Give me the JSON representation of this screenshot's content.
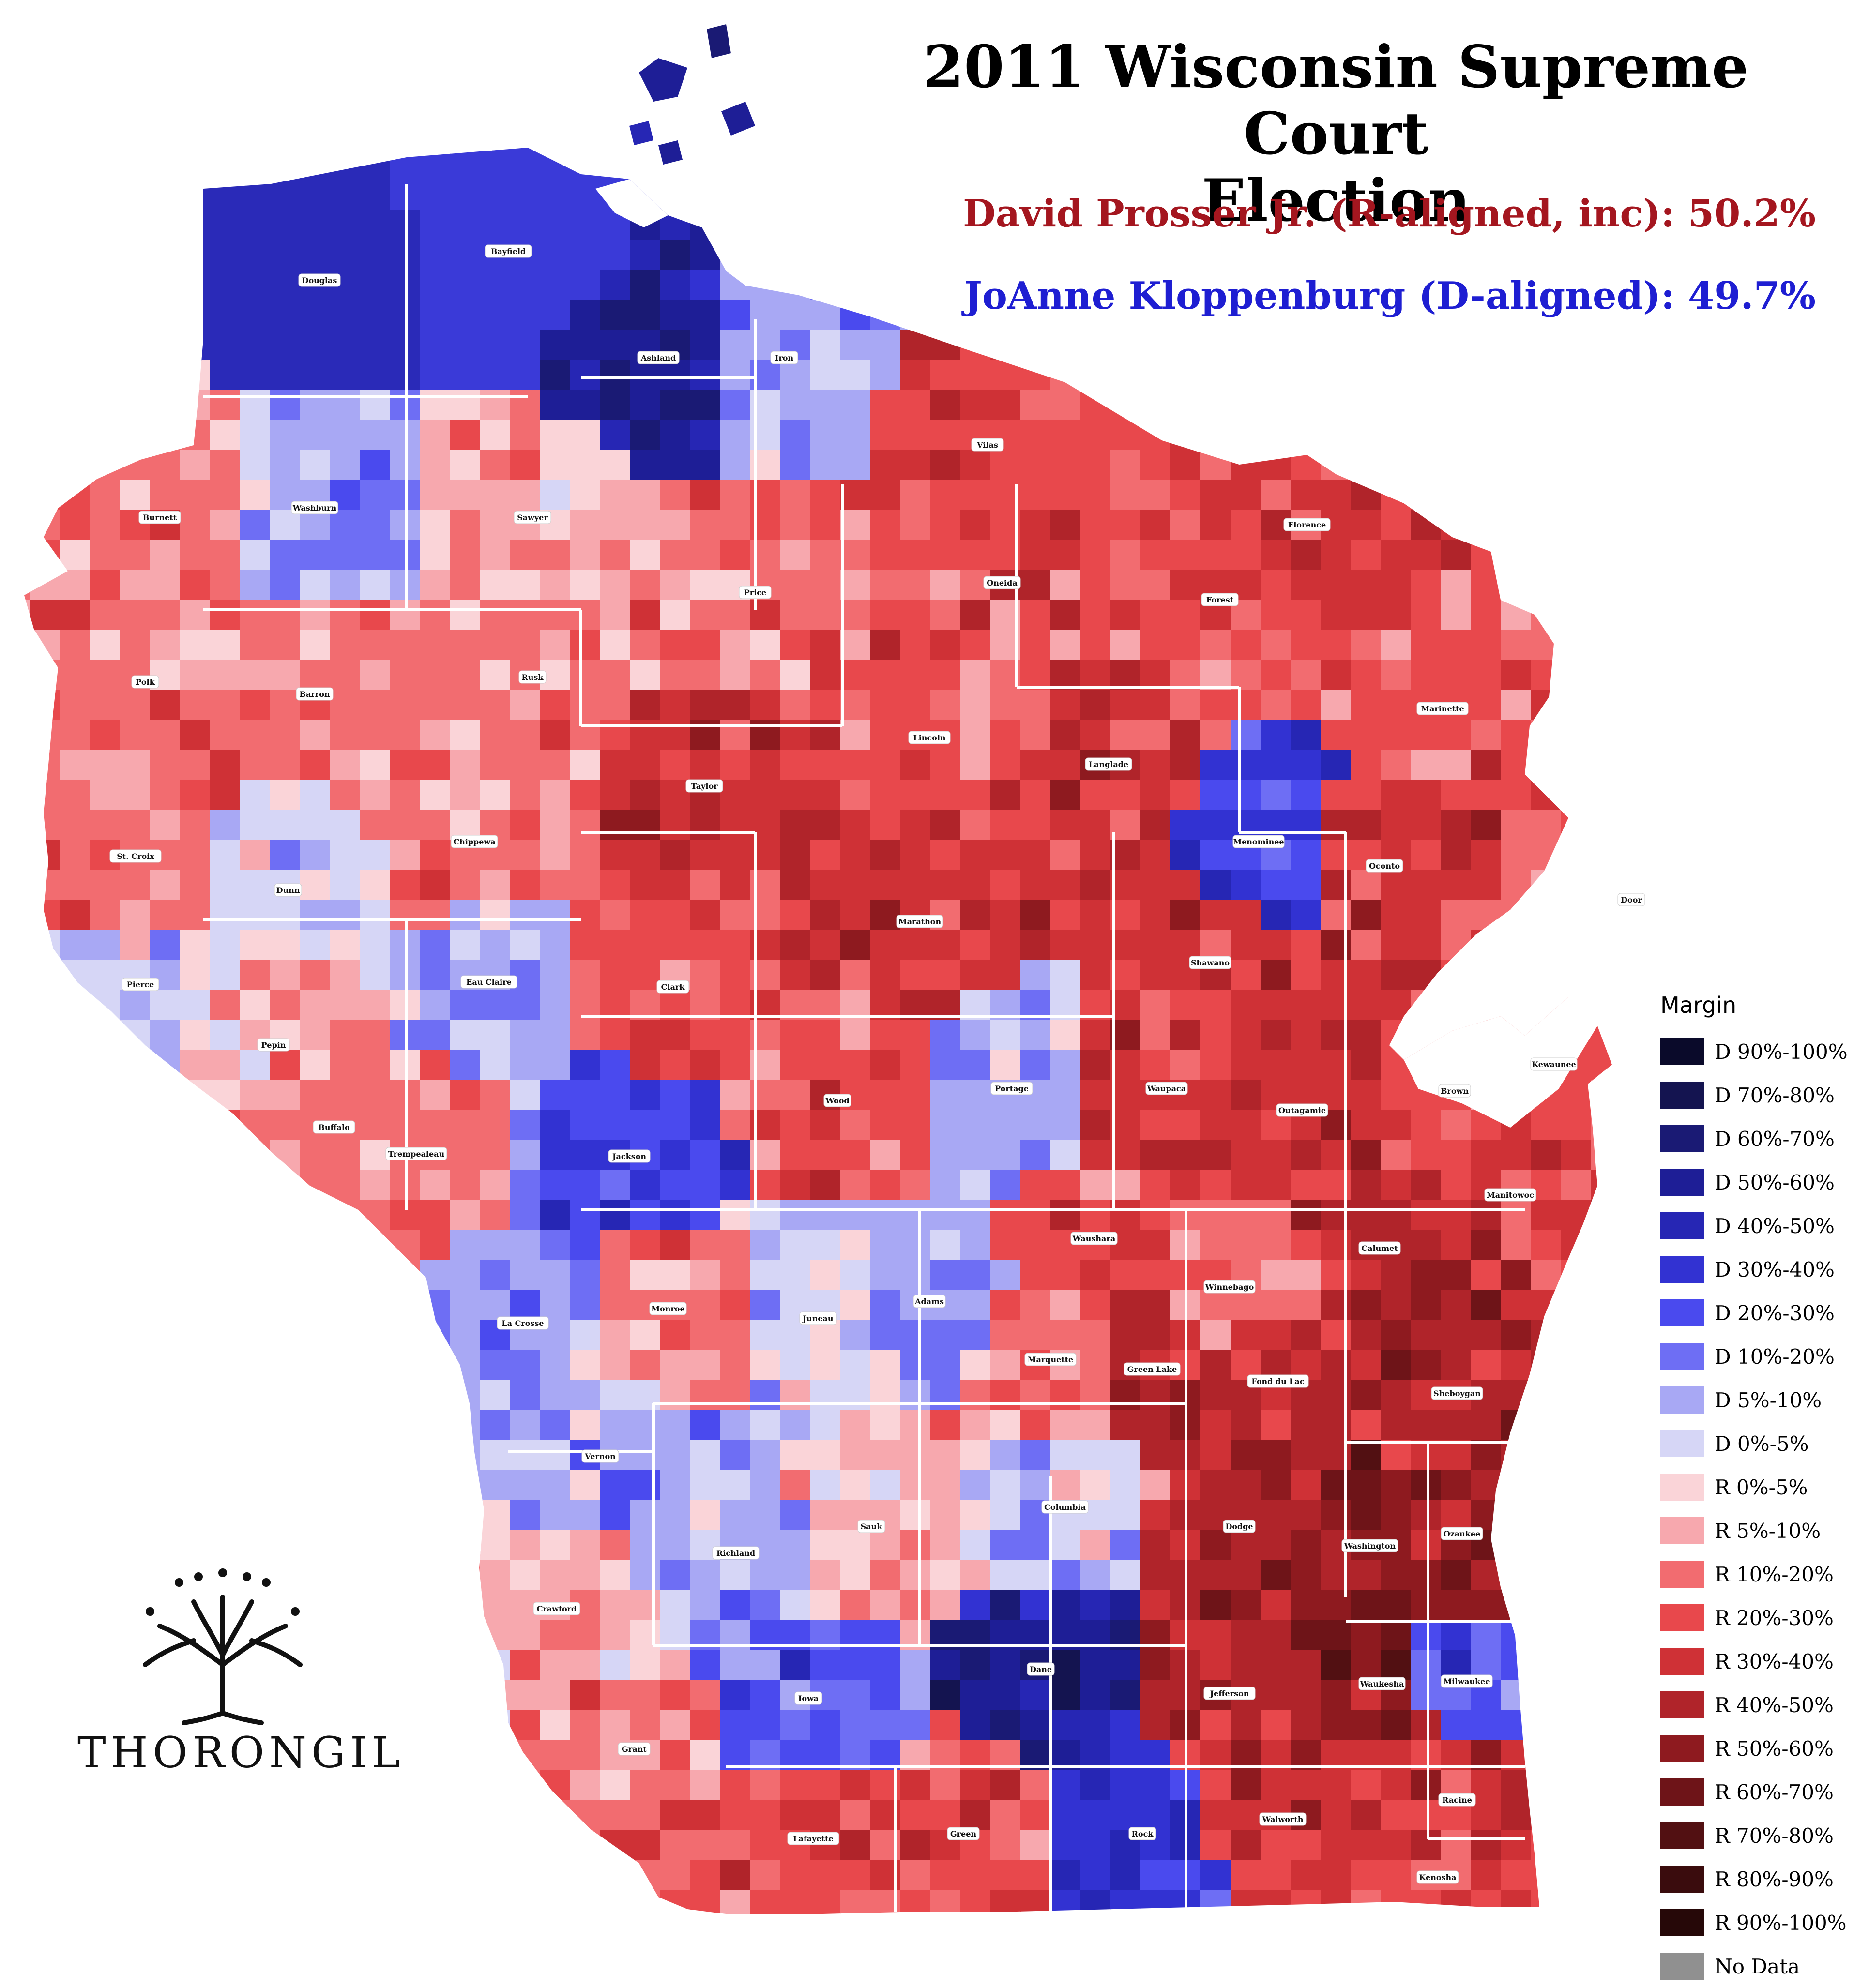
{
  "title": {
    "line1": "2011 Wisconsin Supreme Court",
    "line2": "Election"
  },
  "candidates": {
    "r": {
      "label": "David Prosser Jr. (R-aligned, inc): 50.2%",
      "color": "#a4161f"
    },
    "d": {
      "label": "JoAnne Kloppenburg (D-aligned): 49.7%",
      "color": "#1e1ed2"
    }
  },
  "legend": {
    "title": "Margin",
    "items": [
      {
        "label": "D 90%-100%",
        "color": "#0a0a2a"
      },
      {
        "label": "D 70%-80%",
        "color": "#141450"
      },
      {
        "label": "D 60%-70%",
        "color": "#1a1a74"
      },
      {
        "label": "D 50%-60%",
        "color": "#1e1e96"
      },
      {
        "label": "D 40%-50%",
        "color": "#2626b4"
      },
      {
        "label": "D 30%-40%",
        "color": "#3232d2"
      },
      {
        "label": "D 20%-30%",
        "color": "#4a4aee"
      },
      {
        "label": "D 10%-20%",
        "color": "#6e6ef4"
      },
      {
        "label": "D 5%-10%",
        "color": "#a8a8f4"
      },
      {
        "label": "D 0%-5%",
        "color": "#d6d6f6"
      },
      {
        "label": "R 0%-5%",
        "color": "#fad4d8"
      },
      {
        "label": "R 5%-10%",
        "color": "#f7a8ae"
      },
      {
        "label": "R 10%-20%",
        "color": "#f26c70"
      },
      {
        "label": "R 20%-30%",
        "color": "#e8484c"
      },
      {
        "label": "R 30%-40%",
        "color": "#cf3136"
      },
      {
        "label": "R 40%-50%",
        "color": "#b0242a"
      },
      {
        "label": "R 50%-60%",
        "color": "#8e1a1f"
      },
      {
        "label": "R 60%-70%",
        "color": "#6e1418"
      },
      {
        "label": "R 70%-80%",
        "color": "#521012"
      },
      {
        "label": "R 80%-90%",
        "color": "#3a0c0d"
      },
      {
        "label": "R 90%-100%",
        "color": "#260808"
      },
      {
        "label": "No Data",
        "color": "#909090"
      }
    ]
  },
  "counties": [
    {
      "name": "Douglas",
      "fill": "#2a2ab8"
    },
    {
      "name": "Bayfield",
      "fill": "#3a3ad8"
    },
    {
      "name": "Ashland",
      "fill": "#1e1e96"
    },
    {
      "name": "Iron",
      "fill": "#a8a8f4"
    },
    {
      "name": "Vilas",
      "fill": "#e8484c"
    },
    {
      "name": "Florence",
      "fill": "#cf3136"
    },
    {
      "name": "Burnett",
      "fill": "#f26c70"
    },
    {
      "name": "Washburn",
      "fill": "#a8a8f4"
    },
    {
      "name": "Sawyer",
      "fill": "#f7a8ae"
    },
    {
      "name": "Price",
      "fill": "#f26c70"
    },
    {
      "name": "Oneida",
      "fill": "#e8484c"
    },
    {
      "name": "Forest",
      "fill": "#e8484c"
    },
    {
      "name": "Marinette",
      "fill": "#e8484c"
    },
    {
      "name": "Polk",
      "fill": "#f26c70"
    },
    {
      "name": "Barron",
      "fill": "#f26c70"
    },
    {
      "name": "Rusk",
      "fill": "#f26c70"
    },
    {
      "name": "Taylor",
      "fill": "#cf3136"
    },
    {
      "name": "Lincoln",
      "fill": "#e8484c"
    },
    {
      "name": "Langlade",
      "fill": "#cf3136"
    },
    {
      "name": "Menominee",
      "fill": "#3232d2"
    },
    {
      "name": "Oconto",
      "fill": "#cf3136"
    },
    {
      "name": "Door",
      "fill": "#f26c70"
    },
    {
      "name": "St. Croix",
      "fill": "#f26c70"
    },
    {
      "name": "Dunn",
      "fill": "#d6d6f6"
    },
    {
      "name": "Chippewa",
      "fill": "#f26c70"
    },
    {
      "name": "Marathon",
      "fill": "#cf3136"
    },
    {
      "name": "Shawano",
      "fill": "#cf3136"
    },
    {
      "name": "Kewaunee",
      "fill": "#e8484c"
    },
    {
      "name": "Pierce",
      "fill": "#d6d6f6"
    },
    {
      "name": "Eau Claire",
      "fill": "#a8a8f4"
    },
    {
      "name": "Clark",
      "fill": "#e8484c"
    },
    {
      "name": "Pepin",
      "fill": "#f7a8ae"
    },
    {
      "name": "Buffalo",
      "fill": "#f26c70"
    },
    {
      "name": "Trempealeau",
      "fill": "#f26c70"
    },
    {
      "name": "Jackson",
      "fill": "#4a4aee"
    },
    {
      "name": "Wood",
      "fill": "#e8484c"
    },
    {
      "name": "Portage",
      "fill": "#a8a8f4"
    },
    {
      "name": "Waupaca",
      "fill": "#cf3136"
    },
    {
      "name": "Outagamie",
      "fill": "#cf3136"
    },
    {
      "name": "Brown",
      "fill": "#e8484c"
    },
    {
      "name": "Manitowoc",
      "fill": "#cf3136"
    },
    {
      "name": "La Crosse",
      "fill": "#a8a8f4"
    },
    {
      "name": "Monroe",
      "fill": "#f26c70"
    },
    {
      "name": "Juneau",
      "fill": "#d6d6f6"
    },
    {
      "name": "Adams",
      "fill": "#a8a8f4"
    },
    {
      "name": "Waushara",
      "fill": "#e8484c"
    },
    {
      "name": "Winnebago",
      "fill": "#f26c70"
    },
    {
      "name": "Calumet",
      "fill": "#b0242a"
    },
    {
      "name": "Marquette",
      "fill": "#f26c70"
    },
    {
      "name": "Green Lake",
      "fill": "#b0242a"
    },
    {
      "name": "Fond du Lac",
      "fill": "#b0242a"
    },
    {
      "name": "Sheboygan",
      "fill": "#b0242a"
    },
    {
      "name": "Vernon",
      "fill": "#a8a8f4"
    },
    {
      "name": "Richland",
      "fill": "#a8a8f4"
    },
    {
      "name": "Sauk",
      "fill": "#f7a8ae"
    },
    {
      "name": "Columbia",
      "fill": "#d6d6f6"
    },
    {
      "name": "Dodge",
      "fill": "#b0242a"
    },
    {
      "name": "Washington",
      "fill": "#8e1a1f"
    },
    {
      "name": "Ozaukee",
      "fill": "#8e1a1f"
    },
    {
      "name": "Crawford",
      "fill": "#f7a8ae"
    },
    {
      "name": "Grant",
      "fill": "#f26c70"
    },
    {
      "name": "Iowa",
      "fill": "#4a4aee"
    },
    {
      "name": "Dane",
      "fill": "#1e1e96"
    },
    {
      "name": "Jefferson",
      "fill": "#b0242a"
    },
    {
      "name": "Waukesha",
      "fill": "#8e1a1f"
    },
    {
      "name": "Milwaukee",
      "fill": "#4a4aee"
    },
    {
      "name": "Lafayette",
      "fill": "#e8484c"
    },
    {
      "name": "Green",
      "fill": "#e8484c"
    },
    {
      "name": "Rock",
      "fill": "#3232d2"
    },
    {
      "name": "Walworth",
      "fill": "#cf3136"
    },
    {
      "name": "Racine",
      "fill": "#cf3136"
    },
    {
      "name": "Kenosha",
      "fill": "#e8484c"
    }
  ],
  "logo": {
    "text": "THORONGIL"
  }
}
